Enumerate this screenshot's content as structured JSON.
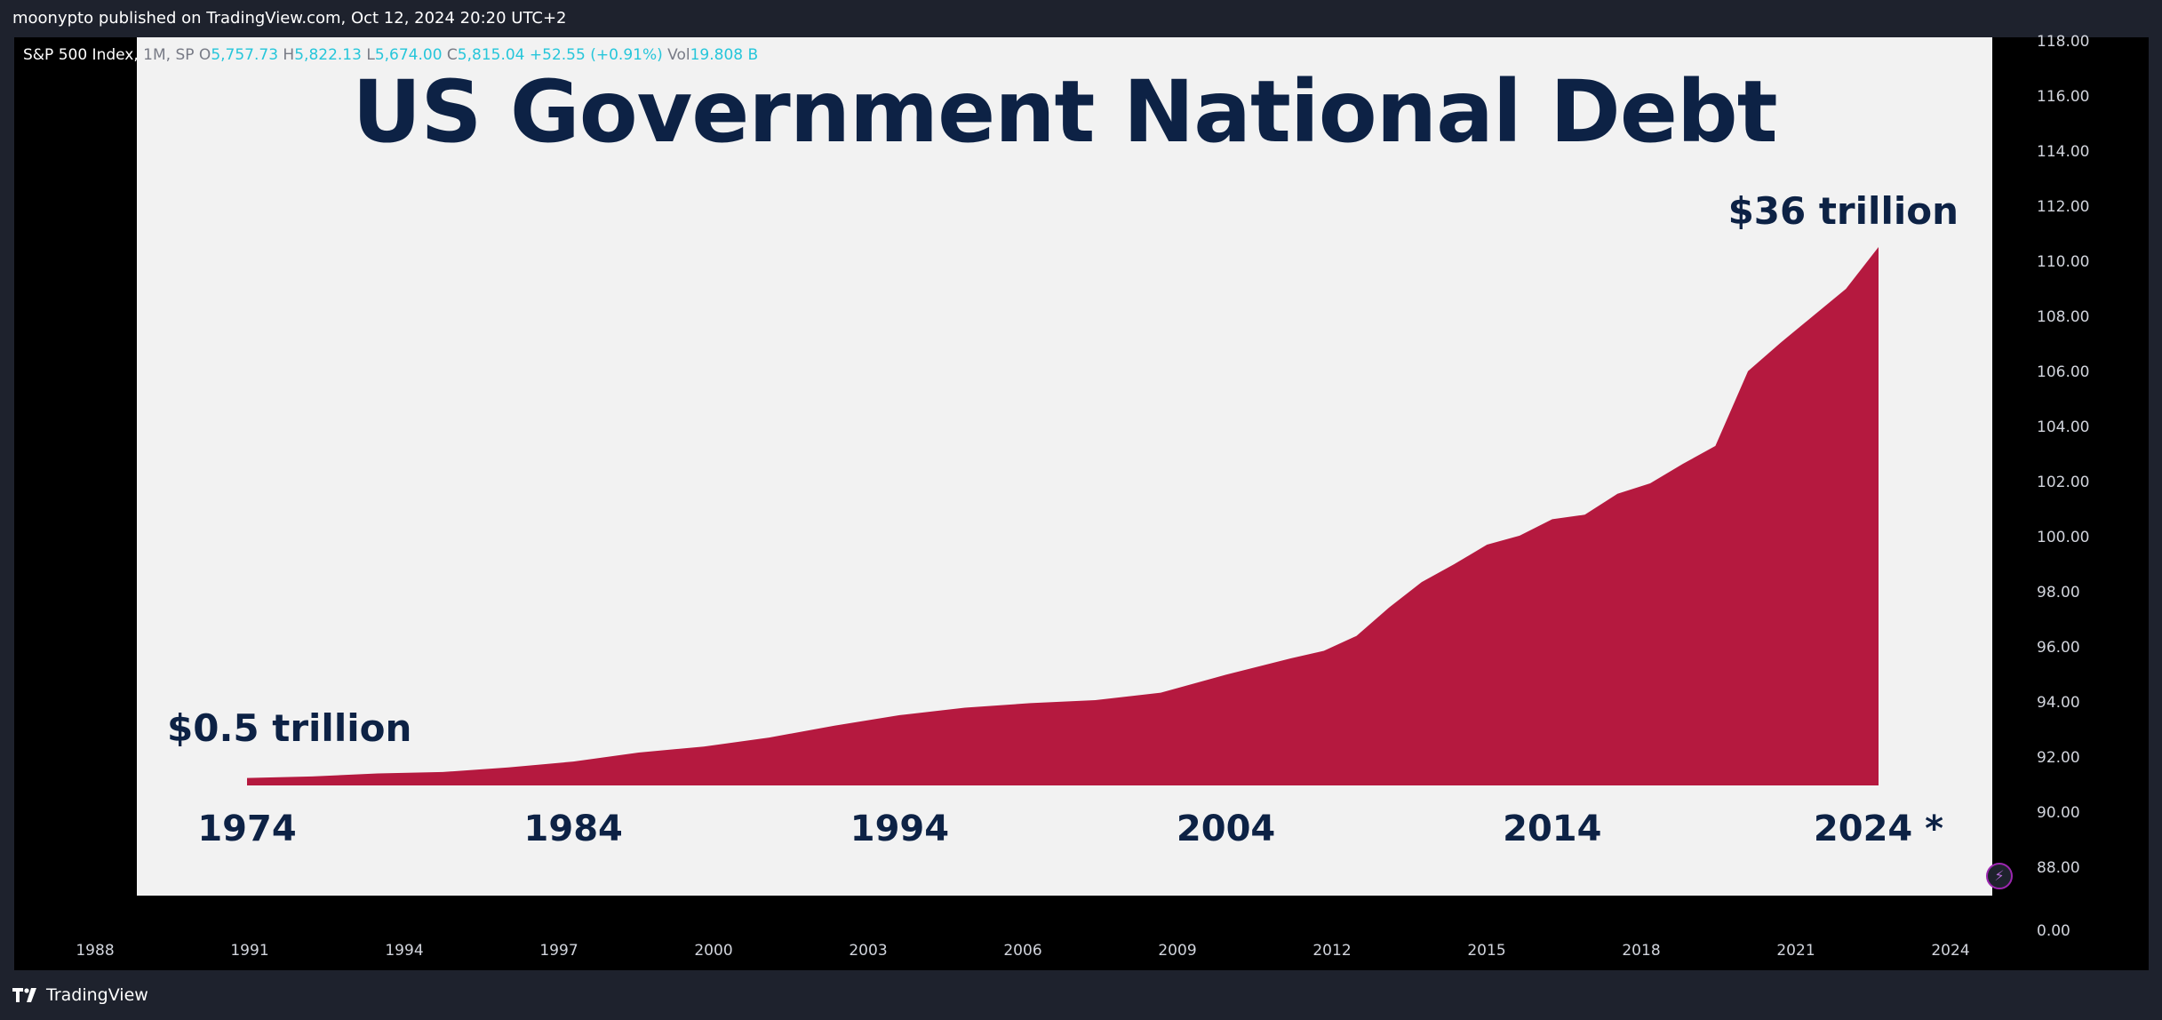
{
  "header": {
    "publish_text": "moonypto published on TradingView.com, Oct 12, 2024 20:20 UTC+2"
  },
  "legend": {
    "symbol": "S&P 500 Index,",
    "interval": "1M, SP",
    "open_label": "O",
    "open": "5,757.73",
    "high_label": "H",
    "high": "5,822.13",
    "low_label": "L",
    "low": "5,674.00",
    "close_label": "C",
    "close": "5,815.04",
    "change": "+52.55 (+0.91%)",
    "vol_label": "Vol",
    "vol": "19.808 B"
  },
  "price_axis": {
    "ticks": [
      "118.00",
      "116.00",
      "114.00",
      "112.00",
      "110.00",
      "108.00",
      "106.00",
      "104.00",
      "102.00",
      "100.00",
      "98.00",
      "96.00",
      "94.00",
      "92.00",
      "90.00",
      "88.00",
      "0.00"
    ]
  },
  "time_axis": {
    "ticks": [
      "1988",
      "1991",
      "1994",
      "1997",
      "2000",
      "2003",
      "2006",
      "2009",
      "2012",
      "2015",
      "2018",
      "2021",
      "2024"
    ]
  },
  "footer": {
    "brand": "TradingView"
  },
  "colors": {
    "area_fill": "#b5193f",
    "title_color": "#0d2245",
    "panel_bg": "#f2f2f2"
  },
  "chart_data": {
    "type": "area",
    "title": "US Government National Debt",
    "xlabel": "",
    "ylabel": "",
    "x_ticks": [
      "1974",
      "1984",
      "1994",
      "2004",
      "2014",
      "2024 *"
    ],
    "annotations": [
      "$0.5 trillion",
      "$36 trillion"
    ],
    "xlim": [
      1974,
      2024
    ],
    "ylim": [
      0,
      36
    ],
    "grid": false,
    "x": [
      1974,
      1976,
      1978,
      1980,
      1982,
      1984,
      1986,
      1988,
      1990,
      1992,
      1994,
      1996,
      1998,
      2000,
      2002,
      2004,
      2006,
      2007,
      2008,
      2009,
      2010,
      2011,
      2012,
      2013,
      2014,
      2015,
      2016,
      2017,
      2018,
      2019,
      2020,
      2021,
      2022,
      2023,
      2024
    ],
    "values": [
      0.5,
      0.6,
      0.8,
      0.9,
      1.2,
      1.6,
      2.2,
      2.6,
      3.2,
      4.0,
      4.7,
      5.2,
      5.5,
      5.7,
      6.2,
      7.4,
      8.5,
      9.0,
      10.0,
      11.9,
      13.6,
      14.8,
      16.1,
      16.7,
      17.8,
      18.1,
      19.5,
      20.2,
      21.5,
      22.7,
      27.7,
      29.6,
      31.4,
      33.2,
      36.0
    ]
  }
}
